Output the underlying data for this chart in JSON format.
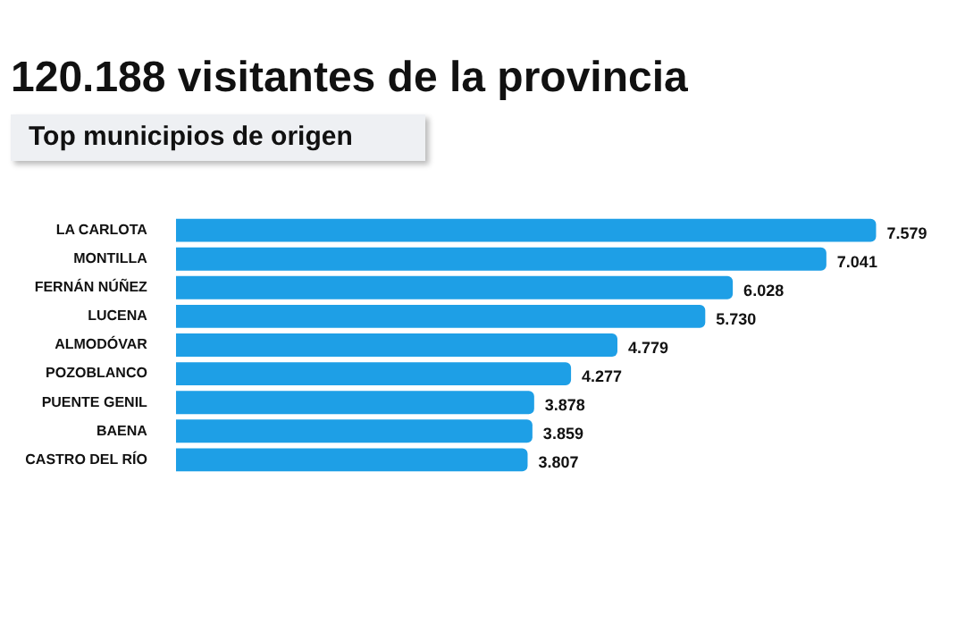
{
  "chart_data": {
    "type": "bar",
    "orientation": "horizontal",
    "title": "120.188 visitantes de la provincia",
    "subtitle": "Top municipios de origen",
    "categories": [
      "LA CARLOTA",
      "MONTILLA",
      "FERNÁN NÚÑEZ",
      "LUCENA",
      "ALMODÓVAR",
      "POZOBLANCO",
      "PUENTE GENIL",
      "BAENA",
      "CASTRO DEL RÍO"
    ],
    "values": [
      7579,
      7041,
      6028,
      5730,
      4779,
      4277,
      3878,
      3859,
      3807
    ],
    "value_labels": [
      "7.579",
      "7.041",
      "6.028",
      "5.730",
      "4.779",
      "4.277",
      "3.878",
      "3.859",
      "3.807"
    ],
    "color": "#1e9fe6",
    "grid": false,
    "legend": false
  }
}
